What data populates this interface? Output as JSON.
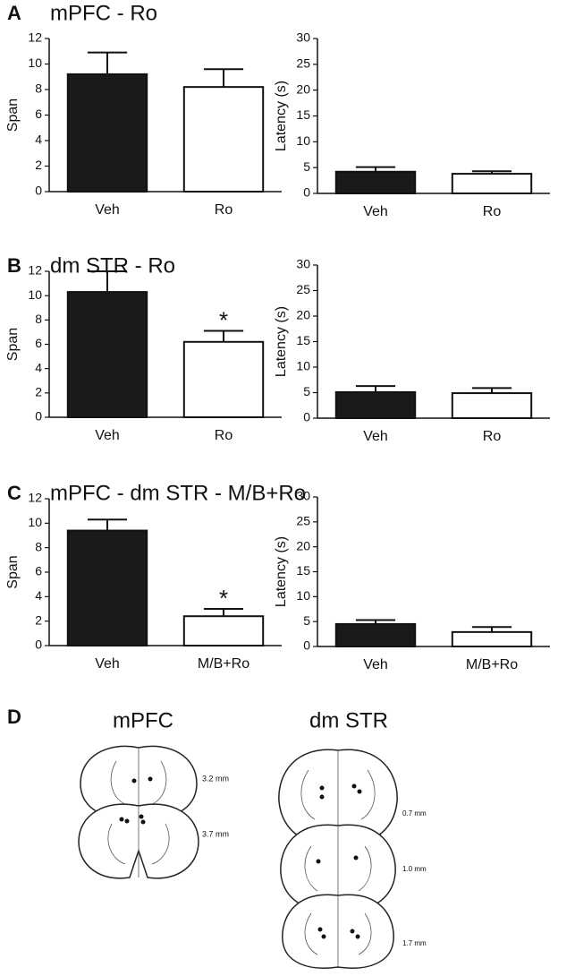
{
  "panels": [
    {
      "label": "A",
      "title": "mPFC - Ro"
    },
    {
      "label": "B",
      "title": "dm STR - Ro"
    },
    {
      "label": "C",
      "title": "mPFC - dm STR - M/B+Ro"
    }
  ],
  "chart_data": [
    {
      "type": "bar",
      "ylabel": "Span",
      "categories": [
        "Veh",
        "Ro"
      ],
      "values": [
        9.2,
        8.2
      ],
      "errors": [
        1.7,
        1.4
      ],
      "colors": [
        "#1a1a1a",
        "#ffffff"
      ],
      "ylim": [
        0,
        12
      ],
      "yticks": [
        0,
        2,
        4,
        6,
        8,
        10,
        12
      ]
    },
    {
      "type": "bar",
      "ylabel": "Latency (s)",
      "categories": [
        "Veh",
        "Ro"
      ],
      "values": [
        4.2,
        3.8
      ],
      "errors": [
        0.9,
        0.5
      ],
      "colors": [
        "#1a1a1a",
        "#ffffff"
      ],
      "ylim": [
        0,
        30
      ],
      "yticks": [
        0,
        5,
        10,
        15,
        20,
        25,
        30
      ]
    },
    {
      "type": "bar",
      "ylabel": "Span",
      "categories": [
        "Veh",
        "Ro"
      ],
      "values": [
        10.3,
        6.2
      ],
      "errors": [
        1.7,
        0.9
      ],
      "colors": [
        "#1a1a1a",
        "#ffffff"
      ],
      "ylim": [
        0,
        12
      ],
      "yticks": [
        0,
        2,
        4,
        6,
        8,
        10,
        12
      ],
      "annotations": [
        {
          "text": "*",
          "x": "Ro"
        }
      ]
    },
    {
      "type": "bar",
      "ylabel": "Latency (s)",
      "categories": [
        "Veh",
        "Ro"
      ],
      "values": [
        5.1,
        4.9
      ],
      "errors": [
        1.2,
        1.0
      ],
      "colors": [
        "#1a1a1a",
        "#ffffff"
      ],
      "ylim": [
        0,
        30
      ],
      "yticks": [
        0,
        5,
        10,
        15,
        20,
        25,
        30
      ]
    },
    {
      "type": "bar",
      "ylabel": "Span",
      "categories": [
        "Veh",
        "M/B+Ro"
      ],
      "values": [
        9.4,
        2.4
      ],
      "errors": [
        0.9,
        0.6
      ],
      "colors": [
        "#1a1a1a",
        "#ffffff"
      ],
      "ylim": [
        0,
        12
      ],
      "yticks": [
        0,
        2,
        4,
        6,
        8,
        10,
        12
      ],
      "annotations": [
        {
          "text": "*",
          "x": "M/B+Ro"
        }
      ]
    },
    {
      "type": "bar",
      "ylabel": "Latency (s)",
      "categories": [
        "Veh",
        "M/B+Ro"
      ],
      "values": [
        4.5,
        2.9
      ],
      "errors": [
        0.8,
        1.0
      ],
      "colors": [
        "#1a1a1a",
        "#ffffff"
      ],
      "ylim": [
        0,
        30
      ],
      "yticks": [
        0,
        5,
        10,
        15,
        20,
        25,
        30
      ]
    }
  ],
  "diagram": {
    "label": "D",
    "sections": [
      {
        "title": "mPFC",
        "levels": [
          "3.2 mm",
          "3.7 mm"
        ]
      },
      {
        "title": "dm STR",
        "levels": [
          "0.7 mm",
          "1.0 mm",
          "1.7 mm"
        ]
      }
    ]
  }
}
